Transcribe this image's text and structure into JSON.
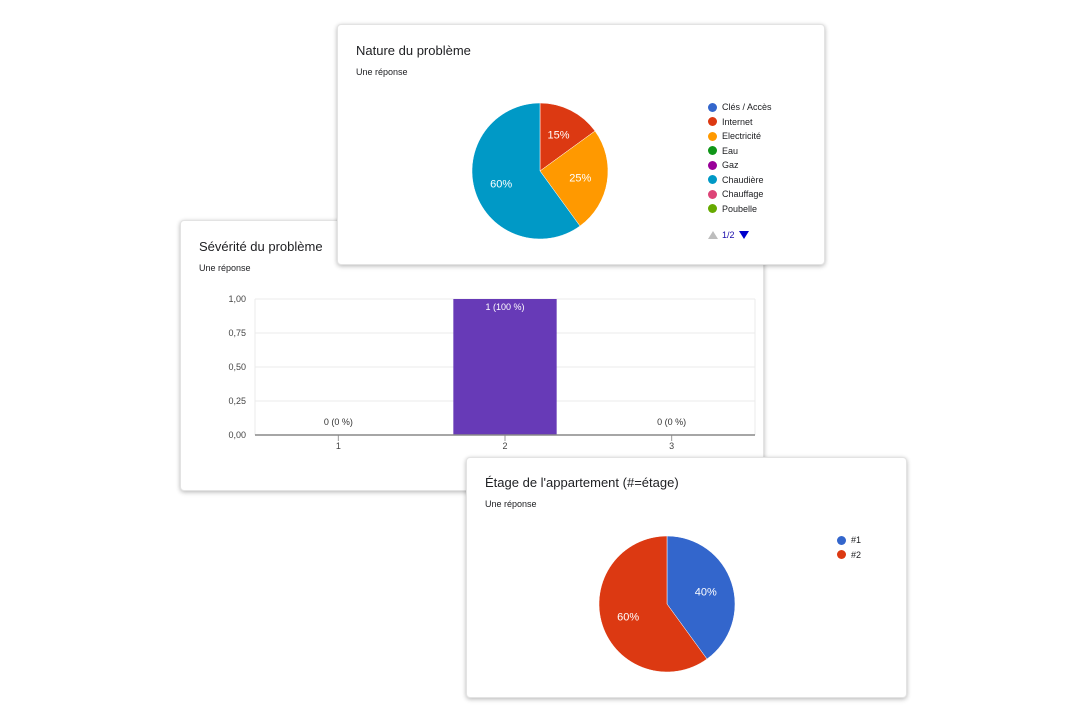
{
  "chart_data": [
    {
      "id": "severite",
      "type": "bar",
      "title": "Sévérité du problème",
      "subtitle": "Une réponse",
      "categories": [
        "1",
        "2",
        "3"
      ],
      "values": [
        0,
        1,
        0
      ],
      "data_labels": [
        "0 (0 %)",
        "1 (100 %)",
        "0 (0 %)"
      ],
      "ylim": [
        0,
        1
      ],
      "yticks": [
        "0,00",
        "0,25",
        "0,50",
        "0,75",
        "1,00"
      ],
      "bar_color": "#673ab7",
      "grid": true
    },
    {
      "id": "nature",
      "type": "pie",
      "title": "Nature du problème",
      "subtitle": "Une réponse",
      "labels": [
        "Clés / Accès",
        "Internet",
        "Electricité",
        "Eau",
        "Gaz",
        "Chaudière",
        "Chauffage",
        "Poubelle"
      ],
      "colors": [
        "#3366cc",
        "#dc3912",
        "#ff9900",
        "#109618",
        "#990099",
        "#0099c6",
        "#dd4477",
        "#66aa00"
      ],
      "values": [
        0,
        15,
        25,
        0,
        0,
        60,
        0,
        0
      ],
      "slice_labels": [
        "",
        "15%",
        "25%",
        "",
        "",
        "60%",
        "",
        ""
      ],
      "legend_position": "right",
      "pager": "1/2"
    },
    {
      "id": "etage",
      "type": "pie",
      "title": "Étage de l'appartement (#=étage)",
      "subtitle": "Une réponse",
      "labels": [
        "#1",
        "#2"
      ],
      "colors": [
        "#3366cc",
        "#dc3912"
      ],
      "values": [
        40,
        60
      ],
      "slice_labels": [
        "40%",
        "60%"
      ],
      "legend_position": "right"
    }
  ]
}
